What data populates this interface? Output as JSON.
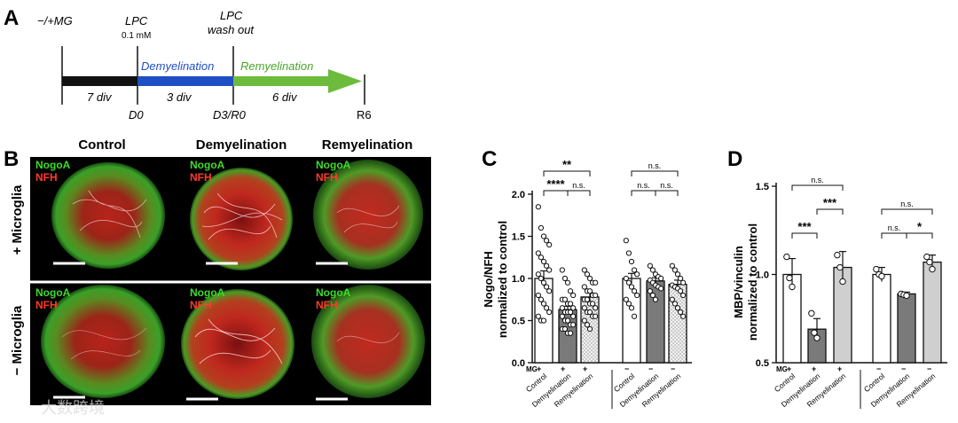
{
  "panel_a": {
    "label": "A",
    "mg_label": "−/+MG",
    "lpc_label": "LPC",
    "lpc_conc": "0.1 mM",
    "washout_line1": "LPC",
    "washout_line2": "wash out",
    "demyelination_label": "Demyelination",
    "remyelination_label": "Remyelination",
    "div_7": "7 div",
    "div_3": "3 div",
    "div_6": "6 div",
    "d0": "D0",
    "d3r0": "D3/R0",
    "r6": "R6",
    "colors": {
      "black_bar": "#111111",
      "blue_bar": "#1f4fc4",
      "green_bar": "#6cbb3c",
      "demy_text": "#1f4fc4",
      "remy_text": "#4aa52a"
    }
  },
  "panel_b": {
    "label": "B",
    "col_headers": [
      "Control",
      "Demyelination",
      "Remyelination"
    ],
    "row_labels": [
      "+ Microglia",
      "− Microglia"
    ],
    "stain_green": "NogoA",
    "stain_red": "NFH",
    "watermark": "大数跨境",
    "colors": {
      "green": "#3ddc2a",
      "red": "#ff3a2a"
    }
  },
  "panel_c": {
    "label": "C",
    "chart_data": {
      "type": "bar",
      "ylabel_line1": "Nogo/NFH",
      "ylabel_line2": "normalized to control",
      "ylim": [
        0,
        2.0
      ],
      "yticks": [
        "0.0",
        "0.5",
        "1.0",
        "1.5",
        "2.0"
      ],
      "mg_row_label": "MG",
      "categories": [
        "Control",
        "Demyelination",
        "Remyelination",
        "Control",
        "Demyelination",
        "Remyelination"
      ],
      "mg_signs": [
        "+",
        "+",
        "+",
        "−",
        "−",
        "−"
      ],
      "values": [
        1.0,
        0.63,
        0.78,
        1.0,
        0.97,
        0.93
      ],
      "errors": [
        0.09,
        0.04,
        0.05,
        0.06,
        0.04,
        0.05
      ],
      "points": [
        [
          1.85,
          1.6,
          1.5,
          1.45,
          1.4,
          1.3,
          1.25,
          1.2,
          1.15,
          1.1,
          1.05,
          1.0,
          0.95,
          0.9,
          0.85,
          0.8,
          0.75,
          0.7,
          0.65,
          0.6,
          0.55,
          0.5,
          0.5
        ],
        [
          1.1,
          1.0,
          0.95,
          0.85,
          0.8,
          0.75,
          0.75,
          0.7,
          0.7,
          0.65,
          0.65,
          0.6,
          0.6,
          0.6,
          0.55,
          0.55,
          0.5,
          0.5,
          0.45,
          0.45,
          0.4,
          0.4,
          0.35,
          0.35
        ],
        [
          1.1,
          1.05,
          1.0,
          0.95,
          0.95,
          0.9,
          0.85,
          0.85,
          0.8,
          0.8,
          0.75,
          0.75,
          0.7,
          0.7,
          0.65,
          0.65,
          0.6,
          0.6,
          0.55,
          0.55,
          0.5,
          0.45,
          0.4
        ],
        [
          1.45,
          1.3,
          1.2,
          1.1,
          1.05,
          1.0,
          0.95,
          0.9,
          0.85,
          0.8,
          0.75,
          0.7,
          0.65,
          0.55
        ],
        [
          1.15,
          1.1,
          1.05,
          1.02,
          1.0,
          0.98,
          0.95,
          0.92,
          0.9,
          0.88,
          0.85,
          0.8,
          0.75
        ],
        [
          1.15,
          1.1,
          1.05,
          1.0,
          0.95,
          0.92,
          0.9,
          0.88,
          0.85,
          0.8,
          0.75,
          0.7,
          0.65,
          0.6,
          0.55
        ]
      ],
      "bar_fills": [
        "#ffffff",
        "#7a7a7a",
        "dots",
        "#ffffff",
        "#7a7a7a",
        "dots"
      ],
      "significance": [
        {
          "from": 0,
          "to": 2,
          "label": "**",
          "level": 2
        },
        {
          "from": 0,
          "to": 1,
          "label": "****",
          "level": 1
        },
        {
          "from": 1,
          "to": 2,
          "label": "n.s.",
          "level": 1
        },
        {
          "from": 3,
          "to": 5,
          "label": "n.s.",
          "level": 2
        },
        {
          "from": 3,
          "to": 4,
          "label": "n.s.",
          "level": 1
        },
        {
          "from": 4,
          "to": 5,
          "label": "n.s.",
          "level": 1
        }
      ]
    }
  },
  "panel_d": {
    "label": "D",
    "chart_data": {
      "type": "bar",
      "ylabel_line1": "MBP/vinculin",
      "ylabel_line2": "normalized to control",
      "ylim": [
        0.5,
        1.5
      ],
      "yticks": [
        "0.5",
        "1.0",
        "1.5"
      ],
      "mg_row_label": "MG",
      "categories": [
        "Control",
        "Demyelination",
        "Remyelination",
        "Control",
        "Demyelination",
        "Remyelination"
      ],
      "mg_signs": [
        "+",
        "+",
        "+",
        "−",
        "−",
        "−"
      ],
      "values": [
        1.0,
        0.69,
        1.04,
        1.0,
        0.89,
        1.07
      ],
      "errors": [
        0.09,
        0.06,
        0.09,
        0.04,
        0.01,
        0.04
      ],
      "points": [
        [
          1.1,
          0.98,
          0.93
        ],
        [
          0.78,
          0.67,
          0.64
        ],
        [
          1.11,
          1.04,
          0.96
        ],
        [
          1.03,
          1.0,
          0.99
        ],
        [
          0.89,
          0.885,
          0.88
        ],
        [
          1.1,
          1.07,
          1.03
        ]
      ],
      "bar_fills": [
        "#ffffff",
        "#7a7a7a",
        "#cfcfcf",
        "#ffffff",
        "#7a7a7a",
        "#cfcfcf"
      ],
      "significance": [
        {
          "from": 0,
          "to": 2,
          "label": "n.s.",
          "level": 3
        },
        {
          "from": 1,
          "to": 2,
          "label": "***",
          "level": 2
        },
        {
          "from": 0,
          "to": 1,
          "label": "***",
          "level": 1
        },
        {
          "from": 3,
          "to": 5,
          "label": "n.s.",
          "level": 2
        },
        {
          "from": 3,
          "to": 4,
          "label": "n.s.",
          "level": 1
        },
        {
          "from": 4,
          "to": 5,
          "label": "*",
          "level": 1
        }
      ]
    }
  }
}
